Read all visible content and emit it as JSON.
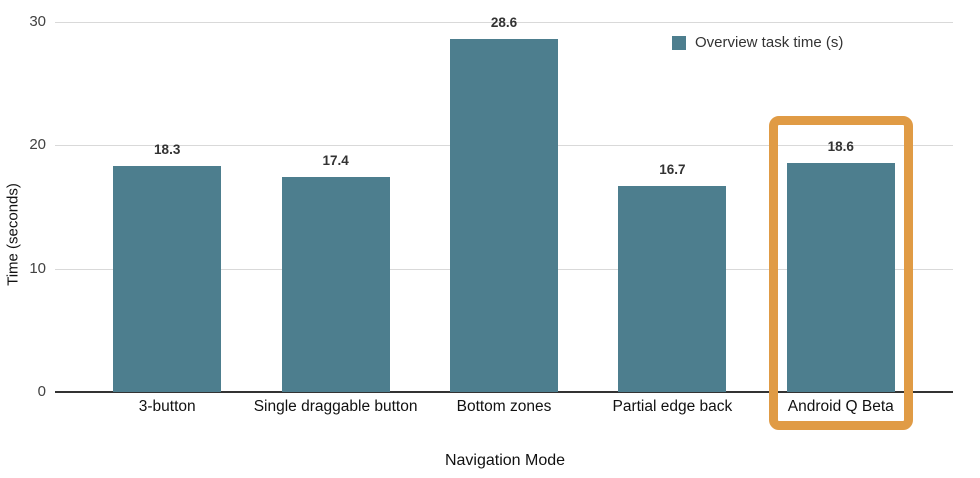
{
  "chart_data": {
    "type": "bar",
    "title": "",
    "categories": [
      "3-button",
      "Single draggable button",
      "Bottom zones",
      "Partial edge back",
      "Android Q Beta"
    ],
    "series": [
      {
        "name": "Overview task time (s)",
        "values": [
          18.3,
          17.4,
          28.6,
          16.7,
          18.6
        ]
      }
    ],
    "value_labels": [
      "18.3",
      "17.4",
      "28.6",
      "16.7",
      "18.6"
    ],
    "xlabel": "Navigation Mode",
    "ylabel": "Time (seconds)",
    "ylim": [
      0,
      30
    ],
    "yticks": [
      0,
      10,
      20,
      30
    ],
    "grid": true,
    "legend_position": "top-right",
    "highlighted_category": "Android Q Beta",
    "colors": {
      "bar": "#4d7e8e",
      "highlight_box": "#e09b45",
      "gridline": "#d9d9d9",
      "axis_line": "#333333",
      "label_text": "#333333"
    }
  }
}
